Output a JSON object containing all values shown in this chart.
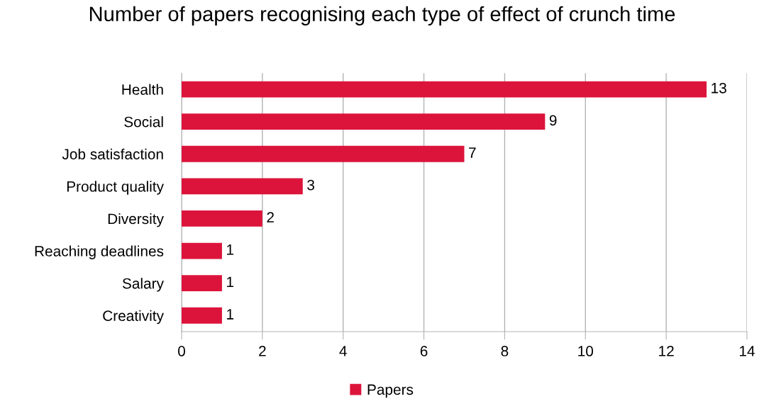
{
  "chart_data": {
    "type": "bar",
    "orientation": "horizontal",
    "title": "Number of papers recognising each type of effect of crunch time",
    "categories": [
      "Health",
      "Social",
      "Job satisfaction",
      "Product quality",
      "Diversity",
      "Reaching deadlines",
      "Salary",
      "Creativity"
    ],
    "series": [
      {
        "name": "Papers",
        "color": "#dc143c",
        "values": [
          13,
          9,
          7,
          3,
          2,
          1,
          1,
          1
        ]
      }
    ],
    "xlim": [
      0,
      14
    ],
    "xticks": [
      0,
      2,
      4,
      6,
      8,
      10,
      12,
      14
    ],
    "grid": "x",
    "legend": "bottom",
    "data_labels": true
  }
}
